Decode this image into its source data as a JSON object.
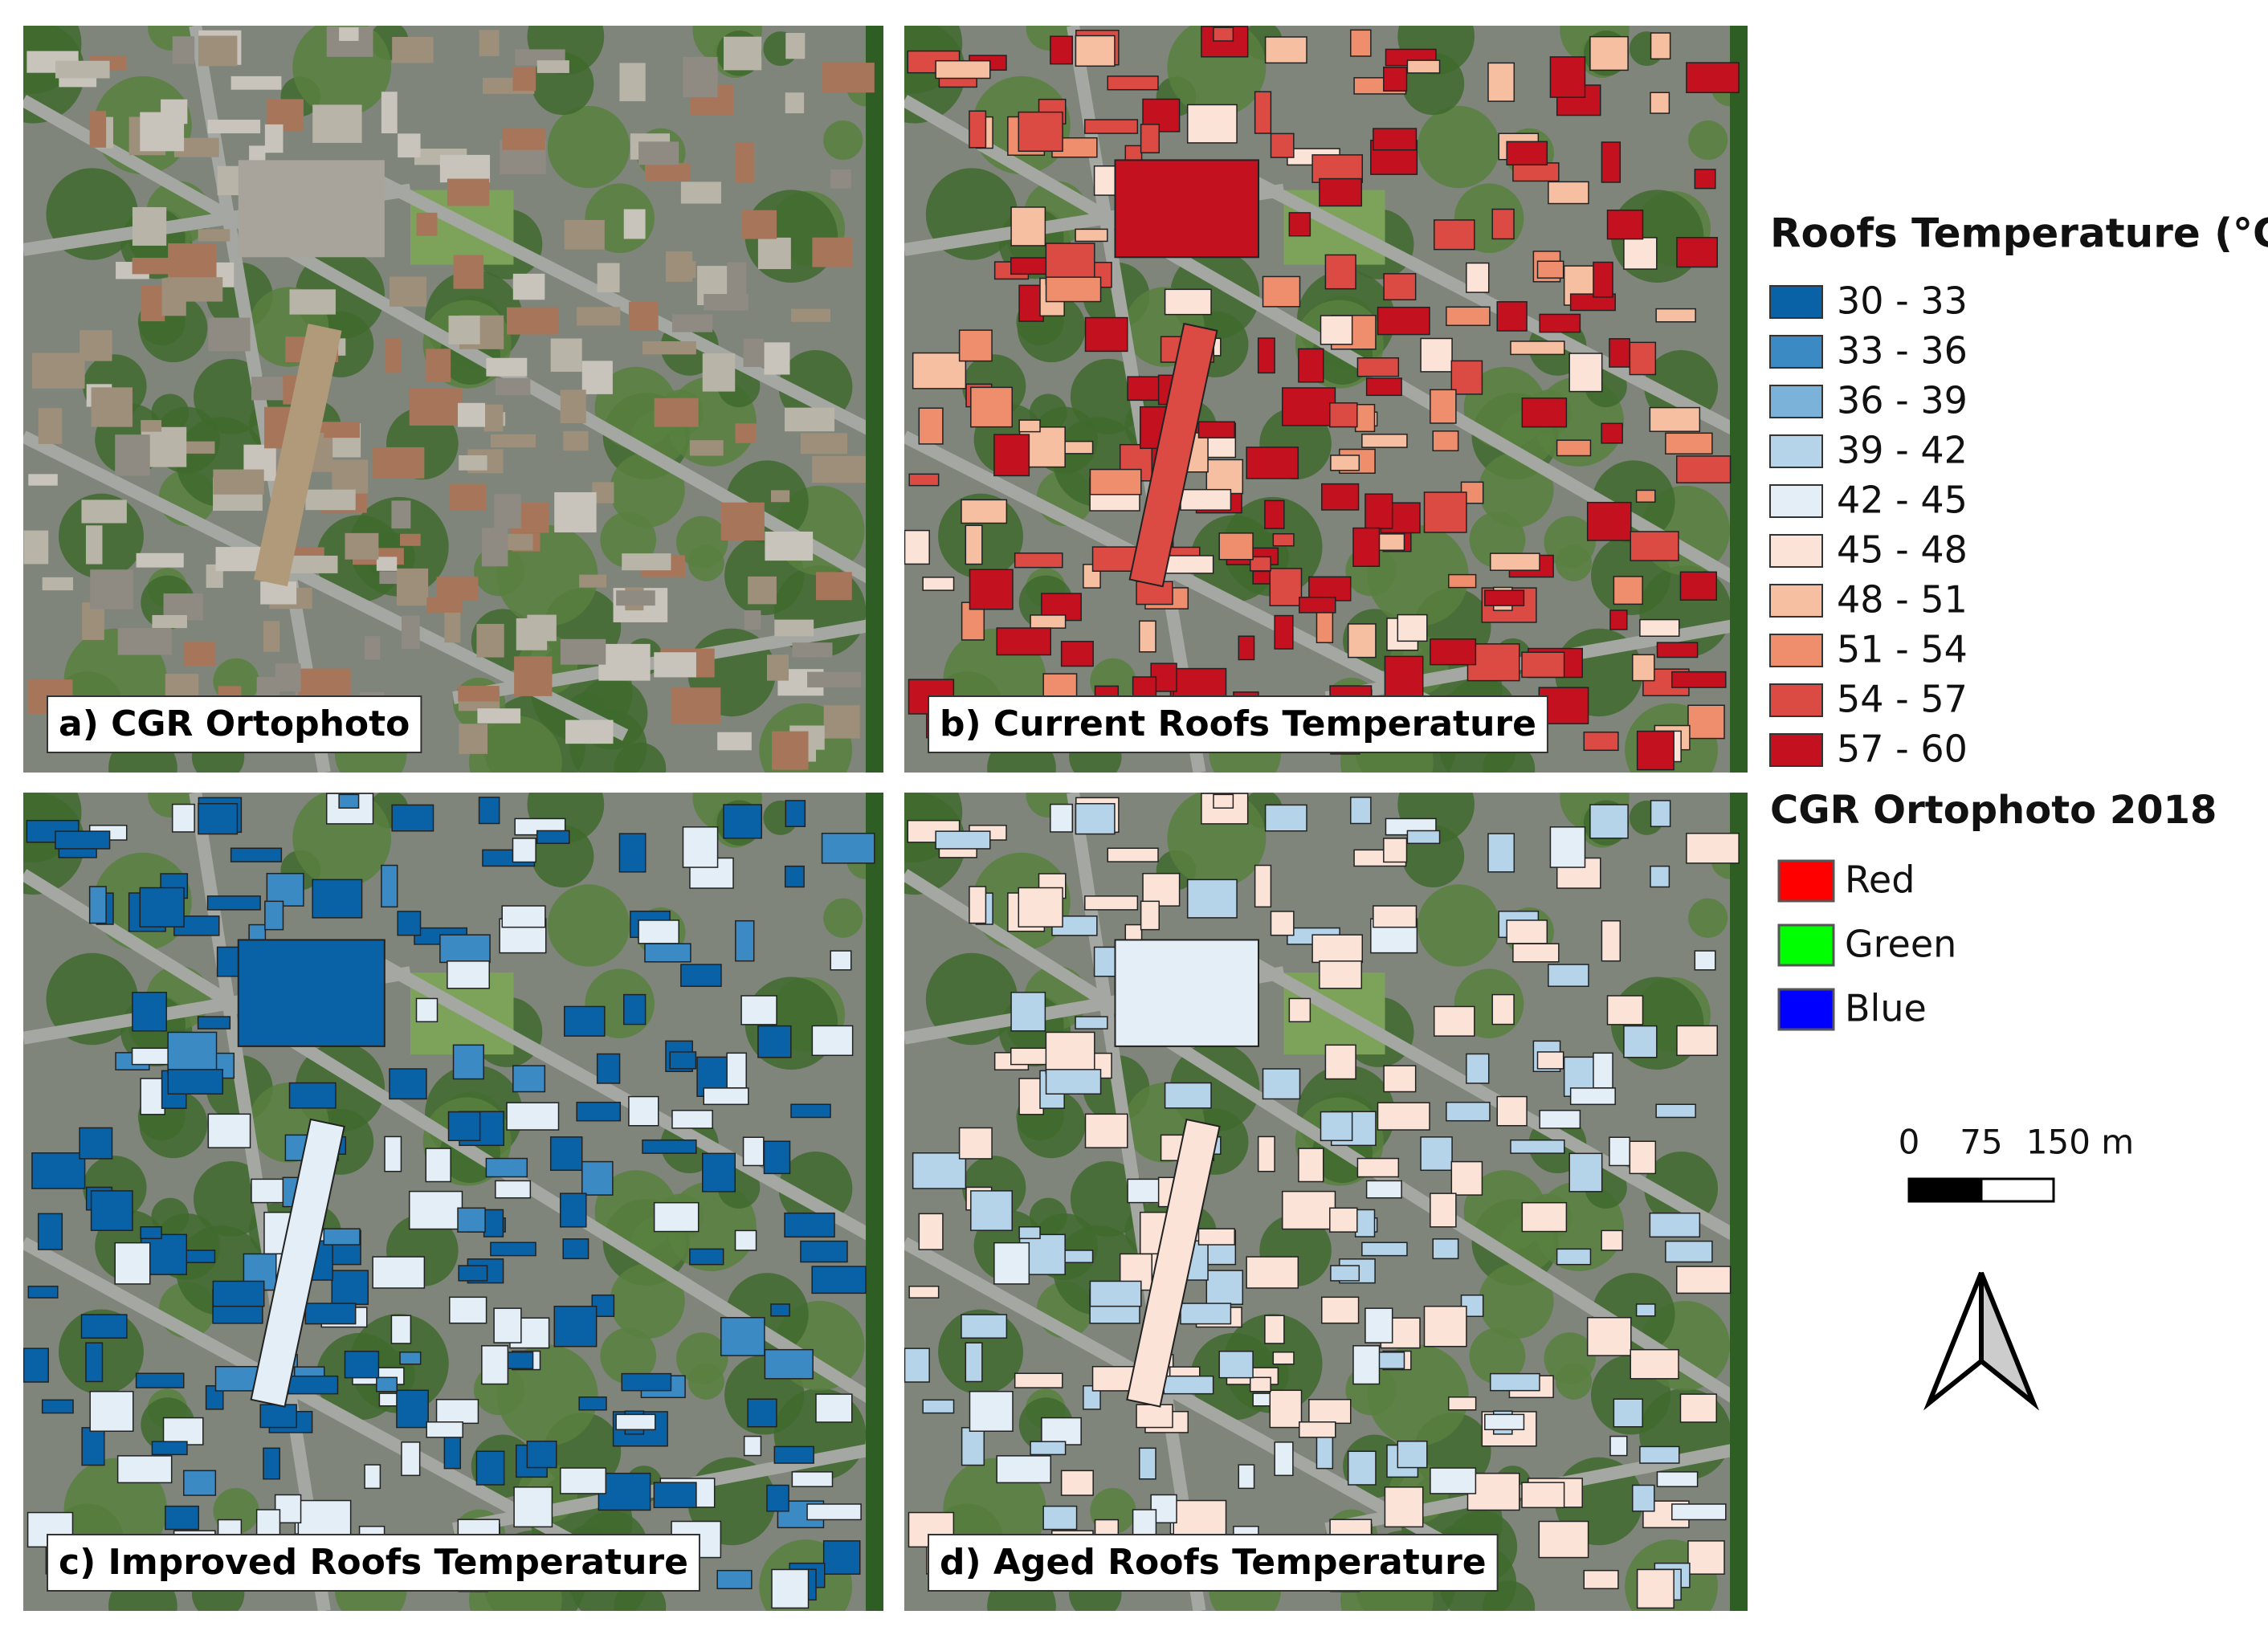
{
  "panels": [
    {
      "label": "a) CGR Ortophoto"
    },
    {
      "label": "b) Current Roofs Temperature"
    },
    {
      "label": "c) Improved Roofs Temperature"
    },
    {
      "label": "d) Aged Roofs Temperature"
    }
  ],
  "legend": {
    "title": "Roofs Temperature (°C)",
    "classes": [
      {
        "label": "30 - 33",
        "color": "#0a62a6"
      },
      {
        "label": "33 - 36",
        "color": "#3b8ac4"
      },
      {
        "label": "36 - 39",
        "color": "#7ab2d9"
      },
      {
        "label": "39 - 42",
        "color": "#b5d4ea"
      },
      {
        "label": "42 - 45",
        "color": "#e3eef6"
      },
      {
        "label": "45 - 48",
        "color": "#fbe3d8"
      },
      {
        "label": "48 - 51",
        "color": "#f6bfa2"
      },
      {
        "label": "51 - 54",
        "color": "#ee8e6c"
      },
      {
        "label": "54 - 57",
        "color": "#dc4a44"
      },
      {
        "label": "57 - 60",
        "color": "#c3111f"
      }
    ]
  },
  "ortophoto_legend": {
    "title": "CGR Ortophoto 2018",
    "bands": [
      {
        "label": "Red",
        "color": "#ff0000"
      },
      {
        "label": "Green",
        "color": "#00ff00"
      },
      {
        "label": "Blue",
        "color": "#0000ff"
      }
    ]
  },
  "scale_bar": {
    "labels": [
      "0",
      "75",
      "150 m"
    ]
  }
}
